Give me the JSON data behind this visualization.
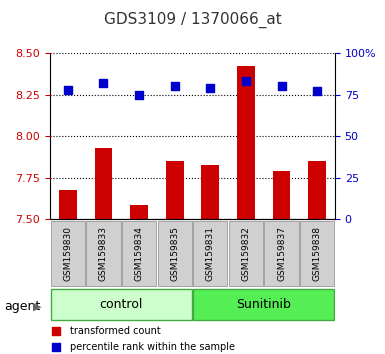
{
  "title": "GDS3109 / 1370066_at",
  "samples": [
    "GSM159830",
    "GSM159833",
    "GSM159834",
    "GSM159835",
    "GSM159831",
    "GSM159832",
    "GSM159837",
    "GSM159838"
  ],
  "groups": [
    "control",
    "control",
    "control",
    "control",
    "Sunitinib",
    "Sunitinib",
    "Sunitinib",
    "Sunitinib"
  ],
  "red_values": [
    7.68,
    7.93,
    7.59,
    7.85,
    7.83,
    8.42,
    7.79,
    7.85
  ],
  "blue_values": [
    78,
    82,
    75,
    80,
    79,
    83,
    80,
    77
  ],
  "ymin": 7.5,
  "ymax": 8.5,
  "y2min": 0,
  "y2max": 100,
  "yticks": [
    7.5,
    7.75,
    8.0,
    8.25,
    8.5
  ],
  "y2ticks": [
    0,
    25,
    50,
    75,
    100
  ],
  "bar_color": "#cc0000",
  "dot_color": "#0000cc",
  "control_color": "#ccffcc",
  "sunitinib_color": "#55ee55",
  "group_labels": [
    "control",
    "Sunitinib"
  ],
  "bar_bottom": 7.5,
  "legend_red": "transformed count",
  "legend_blue": "percentile rank within the sample",
  "agent_label": "agent",
  "title_color": "#333333"
}
